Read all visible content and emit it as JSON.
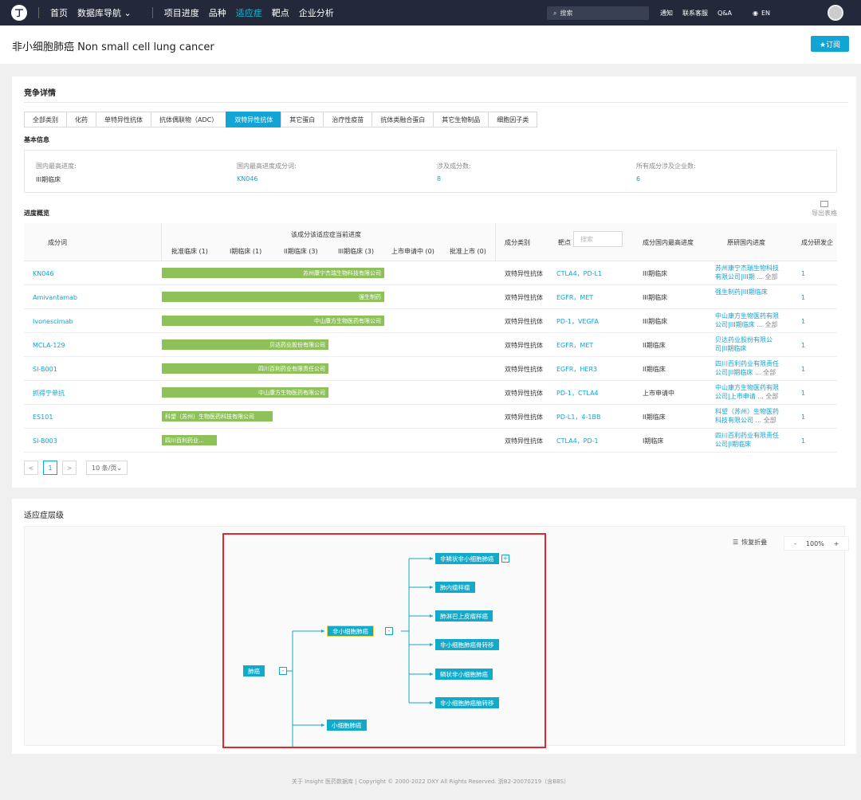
{
  "nav": {
    "logo": "丁",
    "items": [
      "首页",
      "数据库导航 ⌄",
      "项目进度",
      "品种",
      "适应症",
      "靶点",
      "企业分析"
    ],
    "active_index": 4,
    "search_placeholder": "搜索",
    "right_items": [
      "通知",
      "联系客服",
      "Q&A"
    ],
    "lang": "EN"
  },
  "header": {
    "title": "非小细胞肺癌 Non small cell lung cancer",
    "subscribe_label": "★订阅"
  },
  "competition": {
    "title": "竞争详情",
    "tabs": [
      "全部类别",
      "化药",
      "单特异性抗体",
      "抗体偶联物（ADC）",
      "双特异性抗体",
      "其它蛋白",
      "治疗性疫苗",
      "抗体类融合蛋白",
      "其它生物制品",
      "细胞因子类"
    ],
    "active_tab": 4,
    "basic_info_label": "基本信息",
    "basic_info": [
      {
        "key": "国内最高进度:",
        "value": "III期临床",
        "link": false
      },
      {
        "key": "国内最高进度成分词:",
        "value": "KN046",
        "link": true
      },
      {
        "key": "涉及成分数:",
        "value": "8",
        "link": true
      },
      {
        "key": "所有成分涉及企业数:",
        "value": "6",
        "link": true
      }
    ],
    "progress_label": "进度概览",
    "export_label": "导出表格",
    "table": {
      "col_component": "成分词",
      "col_progress": "该成分该适应症当前进度",
      "stages": [
        "批准临床 (1)",
        "I期临床 (1)",
        "II期临床 (3)",
        "III期临床 (3)",
        "上市申请中 (0)",
        "批准上市 (0)"
      ],
      "col_category": "成分类别",
      "col_target": "靶点",
      "target_search_placeholder": "搜索",
      "col_highest": "成分国内最高进度",
      "col_dev_progress": "原研国内进度",
      "col_dev_count": "成分研发企"
    },
    "rows": [
      {
        "name": "KN046",
        "bar_company": "苏州康宁杰瑞生物科技有限公司",
        "bar_stage": 4,
        "category": "双特异性抗体",
        "targets": "CTLA4，PD-L1",
        "highest": "III期临床",
        "dev_line1": "苏州康宁杰瑞生物科技",
        "dev_line2": "有限公司|III期 ...",
        "dev_more": "全部",
        "count": "1"
      },
      {
        "name": "Amivantamab",
        "bar_company": "强生制药",
        "bar_stage": 4,
        "category": "双特异性抗体",
        "targets": "EGFR，MET",
        "highest": "III期临床",
        "dev_line1": "强生制药|III期临床",
        "dev_line2": "",
        "dev_more": "",
        "count": "1"
      },
      {
        "name": "Ivonescimab",
        "bar_company": "中山康方生物医药有限公司",
        "bar_stage": 4,
        "category": "双特异性抗体",
        "targets": "PD-1，VEGFA",
        "highest": "III期临床",
        "dev_line1": "中山康方生物医药有限",
        "dev_line2": "公司|III期临床 ...",
        "dev_more": "全部",
        "count": "1"
      },
      {
        "name": "MCLA-129",
        "bar_company": "贝达药业股份有限公司",
        "bar_stage": 3,
        "category": "双特异性抗体",
        "targets": "EGFR，MET",
        "highest": "II期临床",
        "dev_line1": "贝达药业股份有限公",
        "dev_line2": "司|II期临床",
        "dev_more": "",
        "count": "1"
      },
      {
        "name": "SI-B001",
        "bar_company": "四川百利药业有限责任公司",
        "bar_stage": 3,
        "category": "双特异性抗体",
        "targets": "EGFR，HER3",
        "highest": "II期临床",
        "dev_line1": "四川百利药业有限责任",
        "dev_line2": "公司|II期临床 ...",
        "dev_more": "全部",
        "count": "1"
      },
      {
        "name": "抓得宁单抗",
        "bar_company": "中山康方生物医药有限公司",
        "bar_stage": 3,
        "category": "双特异性抗体",
        "targets": "PD-1，CTLA4",
        "highest": "上市申请中",
        "dev_line1": "中山康方生物医药有限",
        "dev_line2": "公司|上市申请 ...",
        "dev_more": "全部",
        "count": "1"
      },
      {
        "name": "ES101",
        "bar_company": "科望（苏州）生物医药科技有限公司",
        "bar_stage": 2,
        "category": "双特异性抗体",
        "targets": "PD-L1，4-1BB",
        "highest": "II期临床",
        "dev_line1": "科望（苏州）生物医药",
        "dev_line2": "科技有限公司 ...",
        "dev_more": "全部",
        "count": "1"
      },
      {
        "name": "SI-B003",
        "bar_company": "四川百利药业...",
        "bar_stage": 1,
        "category": "双特异性抗体",
        "targets": "CTLA4，PD-1",
        "highest": "I期临床",
        "dev_line1": "四川百利药业有限责任",
        "dev_line2": "公司|I期临床",
        "dev_more": "",
        "count": "1"
      }
    ],
    "pager": {
      "prev": "<",
      "page": "1",
      "next": ">",
      "size": "10 条/页⌄"
    }
  },
  "hierarchy": {
    "title": "适应症层级",
    "restore_label": "恢复折叠",
    "zoom_minus": "-",
    "zoom_value": "100%",
    "zoom_plus": "+",
    "root": "肺癌",
    "root_toggle": "-",
    "level1": [
      {
        "label": "非小细胞肺癌",
        "toggle": "-"
      },
      {
        "label": "小细胞肺癌"
      }
    ],
    "level2": [
      {
        "label": "非鳞状非小细胞肺癌",
        "toggle": "+"
      },
      {
        "label": "肺内瘤样瘤"
      },
      {
        "label": "肺淋巴上皮瘤样癌"
      },
      {
        "label": "非小细胞肺癌骨转移"
      },
      {
        "label": "鳞状非小细胞肺癌"
      },
      {
        "label": "非小细胞肺癌脑转移"
      }
    ]
  },
  "footer": "关于 Insight 医药数据库 | Copyright © 2000-2022 DXY All Rights Reserved. 浙B2-20070219（含BBS）",
  "colors": {
    "accent": "#12a4d4",
    "bar": "#8fc15a",
    "nav": "#23283a",
    "highlight": "#e0282e"
  }
}
